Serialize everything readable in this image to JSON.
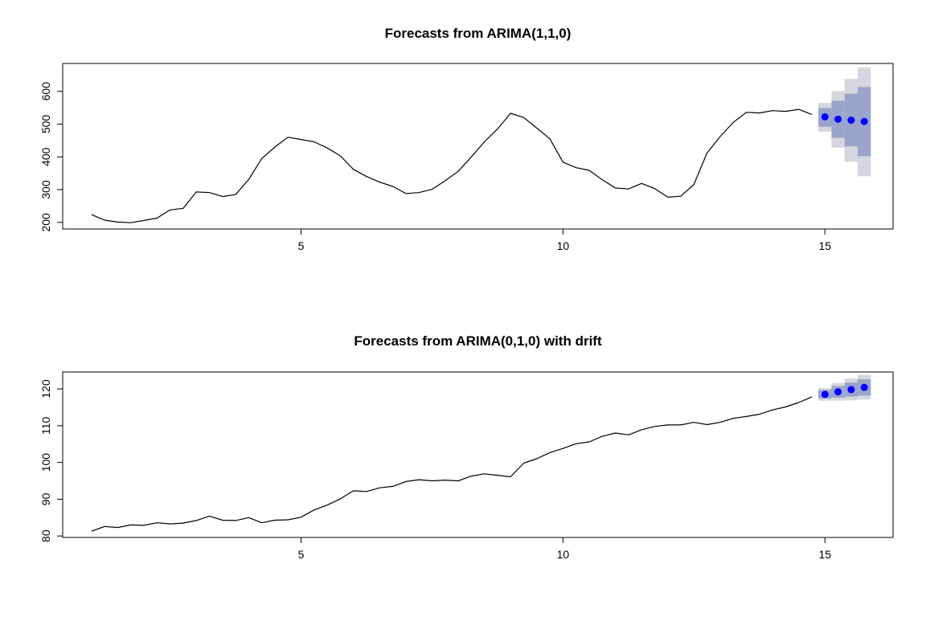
{
  "chart_data": [
    {
      "type": "line",
      "title": "Forecasts from ARIMA(1,1,0)",
      "xlabel": "",
      "ylabel": "",
      "xlim": [
        0.45,
        16.3
      ],
      "ylim": [
        180,
        685
      ],
      "x_ticks": [
        5,
        10,
        15
      ],
      "y_ticks": [
        200,
        300,
        400,
        500,
        600
      ],
      "grid": false,
      "legend": "none",
      "series": [
        {
          "x": [
            1.0,
            1.25,
            1.5,
            1.75,
            2.0,
            2.25,
            2.5,
            2.75,
            3.0,
            3.25,
            3.5,
            3.75,
            4.0,
            4.25,
            4.5,
            4.75,
            5.0,
            5.25,
            5.5,
            5.75,
            6.0,
            6.25,
            6.5,
            6.75,
            7.0,
            7.25,
            7.5,
            7.75,
            8.0,
            8.25,
            8.5,
            8.75,
            9.0,
            9.25,
            9.5,
            9.75,
            10.0,
            10.25,
            10.5,
            10.75,
            11.0,
            11.25,
            11.5,
            11.75,
            12.0,
            12.25,
            12.5,
            12.75,
            13.0,
            13.25,
            13.5,
            13.75,
            14.0,
            14.25,
            14.5,
            14.75
          ],
          "values": [
            224,
            207,
            201,
            199,
            206,
            213,
            238,
            243,
            293,
            291,
            279,
            285,
            331,
            395,
            430,
            460,
            453,
            446,
            427,
            403,
            362,
            340,
            323,
            310,
            288,
            291,
            301,
            327,
            356,
            400,
            446,
            485,
            533,
            520,
            488,
            455,
            384,
            367,
            359,
            330,
            305,
            302,
            319,
            303,
            277,
            280,
            316,
            412,
            462,
            505,
            536,
            534,
            541,
            539,
            545,
            529
          ]
        }
      ],
      "forecast": {
        "x": [
          15.0,
          15.25,
          15.5,
          15.75
        ],
        "mean": [
          522,
          515,
          512,
          508
        ],
        "lo80": [
          492,
          458,
          432,
          402
        ],
        "hi80": [
          549,
          571,
          593,
          613
        ],
        "lo95": [
          477,
          428,
          385,
          341
        ],
        "hi95": [
          565,
          601,
          638,
          673
        ]
      },
      "colors": {
        "line": "#000000",
        "point": "#0000ff",
        "band80": "#9aa4cc",
        "band95": "#d6d6de"
      }
    },
    {
      "type": "line",
      "title": "Forecasts from ARIMA(0,1,0) with drift",
      "xlabel": "",
      "ylabel": "",
      "xlim": [
        0.45,
        16.3
      ],
      "ylim": [
        79.6,
        124.6
      ],
      "x_ticks": [
        5,
        10,
        15
      ],
      "y_ticks": [
        80,
        90,
        100,
        110,
        120
      ],
      "grid": false,
      "legend": "none",
      "series": [
        {
          "x": [
            1.0,
            1.25,
            1.5,
            1.75,
            2.0,
            2.25,
            2.5,
            2.75,
            3.0,
            3.25,
            3.5,
            3.75,
            4.0,
            4.25,
            4.5,
            4.75,
            5.0,
            5.25,
            5.5,
            5.75,
            6.0,
            6.25,
            6.5,
            6.75,
            7.0,
            7.25,
            7.5,
            7.75,
            8.0,
            8.25,
            8.5,
            8.75,
            9.0,
            9.25,
            9.5,
            9.75,
            10.0,
            10.25,
            10.5,
            10.75,
            11.0,
            11.25,
            11.5,
            11.75,
            12.0,
            12.25,
            12.5,
            12.75,
            13.0,
            13.25,
            13.5,
            13.75,
            14.0,
            14.25,
            14.5,
            14.75
          ],
          "values": [
            81.3,
            82.6,
            82.3,
            83.0,
            82.9,
            83.6,
            83.3,
            83.5,
            84.2,
            85.4,
            84.3,
            84.2,
            85.0,
            83.6,
            84.3,
            84.4,
            85.1,
            87.1,
            88.4,
            90.1,
            92.3,
            92.1,
            93.1,
            93.5,
            94.8,
            95.3,
            95.0,
            95.2,
            95.0,
            96.3,
            96.9,
            96.5,
            96.1,
            99.8,
            101.0,
            102.7,
            103.8,
            105.1,
            105.6,
            107.1,
            108.0,
            107.5,
            108.9,
            109.8,
            110.2,
            110.2,
            110.9,
            110.3,
            110.9,
            112.0,
            112.5,
            113.1,
            114.3,
            115.1,
            116.3,
            117.8
          ]
        }
      ],
      "forecast": {
        "x": [
          15.0,
          15.25,
          15.5,
          15.75
        ],
        "mean": [
          118.5,
          119.2,
          119.8,
          120.4
        ],
        "lo80": [
          117.4,
          117.6,
          117.9,
          118.2
        ],
        "hi80": [
          119.7,
          120.8,
          121.7,
          122.6
        ],
        "lo95": [
          116.8,
          116.8,
          116.9,
          117.1
        ],
        "hi95": [
          120.2,
          121.6,
          122.8,
          123.8
        ]
      },
      "colors": {
        "line": "#000000",
        "point": "#0000ff",
        "band80": "#9aa4cc",
        "band95": "#d6d6de"
      }
    }
  ]
}
